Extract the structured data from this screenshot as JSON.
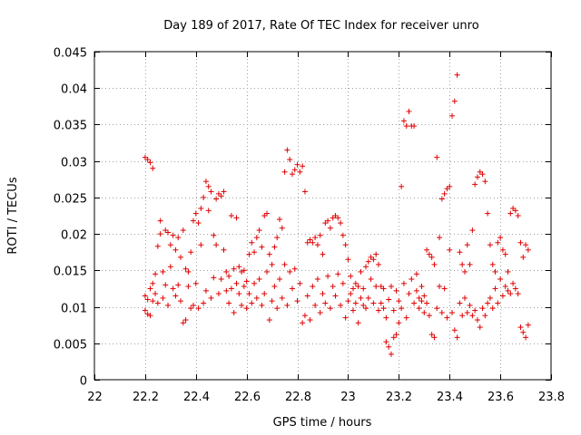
{
  "chart_data": {
    "type": "scatter",
    "title": "Day 189 of 2017, Rate Of TEC Index for receiver unro",
    "xlabel": "GPS time / hours",
    "ylabel": "ROTI / TECUs",
    "xlim": [
      22,
      23.8
    ],
    "ylim": [
      0,
      0.045
    ],
    "x_ticks": [
      22,
      22.2,
      22.4,
      22.6,
      22.8,
      23,
      23.2,
      23.4,
      23.6,
      23.8
    ],
    "x_tick_labels": [
      "22",
      "22.2",
      "22.4",
      "22.6",
      "22.8",
      "23",
      "23.2",
      "23.4",
      "23.6",
      "23.8"
    ],
    "y_ticks": [
      0,
      0.005,
      0.01,
      0.015,
      0.02,
      0.025,
      0.03,
      0.035,
      0.04,
      0.045
    ],
    "y_tick_labels": [
      "0",
      "0.005",
      "0.01",
      "0.015",
      "0.02",
      "0.025",
      "0.03",
      "0.035",
      "0.04",
      "0.045"
    ],
    "grid": true,
    "marker": "+",
    "color": "#e00000",
    "points": [
      [
        22.2,
        0.0305
      ],
      [
        22.21,
        0.0302
      ],
      [
        22.22,
        0.0298
      ],
      [
        22.23,
        0.029
      ],
      [
        22.2,
        0.0115
      ],
      [
        22.2,
        0.0095
      ],
      [
        22.21,
        0.009
      ],
      [
        22.21,
        0.011
      ],
      [
        22.22,
        0.0125
      ],
      [
        22.22,
        0.0088
      ],
      [
        22.23,
        0.0108
      ],
      [
        22.23,
        0.0132
      ],
      [
        22.24,
        0.0145
      ],
      [
        22.24,
        0.0118
      ],
      [
        22.25,
        0.0183
      ],
      [
        22.25,
        0.0105
      ],
      [
        22.26,
        0.0218
      ],
      [
        22.26,
        0.02
      ],
      [
        22.27,
        0.0148
      ],
      [
        22.27,
        0.0112
      ],
      [
        22.28,
        0.0205
      ],
      [
        22.28,
        0.013
      ],
      [
        22.29,
        0.0202
      ],
      [
        22.29,
        0.0102
      ],
      [
        22.3,
        0.0185
      ],
      [
        22.3,
        0.0155
      ],
      [
        22.31,
        0.0125
      ],
      [
        22.31,
        0.0198
      ],
      [
        22.32,
        0.0178
      ],
      [
        22.32,
        0.0115
      ],
      [
        22.33,
        0.0195
      ],
      [
        22.33,
        0.013
      ],
      [
        22.34,
        0.0168
      ],
      [
        22.34,
        0.0108
      ],
      [
        22.35,
        0.0205
      ],
      [
        22.35,
        0.0078
      ],
      [
        22.36,
        0.0152
      ],
      [
        22.36,
        0.0082
      ],
      [
        22.37,
        0.0128
      ],
      [
        22.37,
        0.0148
      ],
      [
        22.38,
        0.0175
      ],
      [
        22.38,
        0.0098
      ],
      [
        22.39,
        0.0218
      ],
      [
        22.39,
        0.0102
      ],
      [
        22.4,
        0.0228
      ],
      [
        22.4,
        0.0132
      ],
      [
        22.41,
        0.0215
      ],
      [
        22.41,
        0.0098
      ],
      [
        22.42,
        0.0235
      ],
      [
        22.42,
        0.0185
      ],
      [
        22.43,
        0.025
      ],
      [
        22.43,
        0.0105
      ],
      [
        22.44,
        0.0272
      ],
      [
        22.44,
        0.0122
      ],
      [
        22.45,
        0.0265
      ],
      [
        22.45,
        0.0232
      ],
      [
        22.46,
        0.0258
      ],
      [
        22.46,
        0.0112
      ],
      [
        22.47,
        0.0198
      ],
      [
        22.47,
        0.014
      ],
      [
        22.48,
        0.0248
      ],
      [
        22.48,
        0.0185
      ],
      [
        22.49,
        0.0255
      ],
      [
        22.49,
        0.0118
      ],
      [
        22.5,
        0.0252
      ],
      [
        22.5,
        0.0138
      ],
      [
        22.51,
        0.0258
      ],
      [
        22.51,
        0.0178
      ],
      [
        22.52,
        0.0122
      ],
      [
        22.52,
        0.0148
      ],
      [
        22.53,
        0.0142
      ],
      [
        22.53,
        0.0105
      ],
      [
        22.54,
        0.0225
      ],
      [
        22.54,
        0.0125
      ],
      [
        22.55,
        0.0152
      ],
      [
        22.55,
        0.0092
      ],
      [
        22.56,
        0.0222
      ],
      [
        22.56,
        0.0132
      ],
      [
        22.57,
        0.0155
      ],
      [
        22.57,
        0.0118
      ],
      [
        22.58,
        0.0148
      ],
      [
        22.58,
        0.0102
      ],
      [
        22.59,
        0.0128
      ],
      [
        22.59,
        0.015
      ],
      [
        22.6,
        0.0135
      ],
      [
        22.6,
        0.0098
      ],
      [
        22.61,
        0.0172
      ],
      [
        22.61,
        0.0118
      ],
      [
        22.62,
        0.0188
      ],
      [
        22.62,
        0.0105
      ],
      [
        22.63,
        0.0175
      ],
      [
        22.63,
        0.0132
      ],
      [
        22.64,
        0.0195
      ],
      [
        22.64,
        0.0112
      ],
      [
        22.65,
        0.0205
      ],
      [
        22.65,
        0.0138
      ],
      [
        22.66,
        0.0182
      ],
      [
        22.66,
        0.0102
      ],
      [
        22.67,
        0.0225
      ],
      [
        22.67,
        0.0118
      ],
      [
        22.68,
        0.0228
      ],
      [
        22.68,
        0.0148
      ],
      [
        22.69,
        0.0172
      ],
      [
        22.69,
        0.0082
      ],
      [
        22.7,
        0.0158
      ],
      [
        22.7,
        0.0108
      ],
      [
        22.71,
        0.0182
      ],
      [
        22.71,
        0.0128
      ],
      [
        22.72,
        0.0195
      ],
      [
        22.72,
        0.0098
      ],
      [
        22.73,
        0.022
      ],
      [
        22.73,
        0.0138
      ],
      [
        22.74,
        0.0208
      ],
      [
        22.74,
        0.0112
      ],
      [
        22.75,
        0.0285
      ],
      [
        22.75,
        0.0158
      ],
      [
        22.76,
        0.0315
      ],
      [
        22.76,
        0.0102
      ],
      [
        22.77,
        0.0302
      ],
      [
        22.77,
        0.0148
      ],
      [
        22.78,
        0.0282
      ],
      [
        22.78,
        0.0125
      ],
      [
        22.79,
        0.0288
      ],
      [
        22.79,
        0.0152
      ],
      [
        22.8,
        0.0295
      ],
      [
        22.8,
        0.0108
      ],
      [
        22.81,
        0.0285
      ],
      [
        22.81,
        0.0132
      ],
      [
        22.82,
        0.0293
      ],
      [
        22.82,
        0.0078
      ],
      [
        22.83,
        0.0258
      ],
      [
        22.83,
        0.0088
      ],
      [
        22.84,
        0.0188
      ],
      [
        22.84,
        0.0115
      ],
      [
        22.85,
        0.0192
      ],
      [
        22.85,
        0.0082
      ],
      [
        22.86,
        0.0188
      ],
      [
        22.86,
        0.0128
      ],
      [
        22.87,
        0.0195
      ],
      [
        22.87,
        0.0102
      ],
      [
        22.88,
        0.0185
      ],
      [
        22.88,
        0.0138
      ],
      [
        22.89,
        0.0198
      ],
      [
        22.89,
        0.0092
      ],
      [
        22.9,
        0.0172
      ],
      [
        22.9,
        0.0118
      ],
      [
        22.91,
        0.0215
      ],
      [
        22.91,
        0.0105
      ],
      [
        22.92,
        0.0218
      ],
      [
        22.92,
        0.0142
      ],
      [
        22.93,
        0.0208
      ],
      [
        22.93,
        0.0098
      ],
      [
        22.94,
        0.0222
      ],
      [
        22.94,
        0.0128
      ],
      [
        22.95,
        0.0225
      ],
      [
        22.95,
        0.0115
      ],
      [
        22.96,
        0.0222
      ],
      [
        22.96,
        0.0145
      ],
      [
        22.97,
        0.0215
      ],
      [
        22.97,
        0.0102
      ],
      [
        22.98,
        0.0198
      ],
      [
        22.98,
        0.0132
      ],
      [
        22.99,
        0.0185
      ],
      [
        22.99,
        0.0085
      ],
      [
        23.0,
        0.0165
      ],
      [
        23.0,
        0.0108
      ],
      [
        23.01,
        0.0118
      ],
      [
        23.01,
        0.0142
      ],
      [
        23.02,
        0.0125
      ],
      [
        23.02,
        0.0095
      ],
      [
        23.03,
        0.0132
      ],
      [
        23.03,
        0.0105
      ],
      [
        23.04,
        0.0078
      ],
      [
        23.04,
        0.0128
      ],
      [
        23.05,
        0.0112
      ],
      [
        23.05,
        0.0148
      ],
      [
        23.06,
        0.0102
      ],
      [
        23.06,
        0.0125
      ],
      [
        23.07,
        0.0155
      ],
      [
        23.07,
        0.0098
      ],
      [
        23.08,
        0.0162
      ],
      [
        23.08,
        0.0112
      ],
      [
        23.09,
        0.0168
      ],
      [
        23.09,
        0.0138
      ],
      [
        23.1,
        0.0165
      ],
      [
        23.1,
        0.0105
      ],
      [
        23.11,
        0.0172
      ],
      [
        23.11,
        0.0128
      ],
      [
        23.12,
        0.0158
      ],
      [
        23.12,
        0.0095
      ],
      [
        23.13,
        0.0128
      ],
      [
        23.13,
        0.0105
      ],
      [
        23.14,
        0.0098
      ],
      [
        23.14,
        0.0125
      ],
      [
        23.15,
        0.0052
      ],
      [
        23.15,
        0.0085
      ],
      [
        23.16,
        0.0045
      ],
      [
        23.16,
        0.011
      ],
      [
        23.17,
        0.0035
      ],
      [
        23.17,
        0.0128
      ],
      [
        23.18,
        0.0058
      ],
      [
        23.18,
        0.0095
      ],
      [
        23.19,
        0.0062
      ],
      [
        23.19,
        0.0122
      ],
      [
        23.2,
        0.0078
      ],
      [
        23.2,
        0.0108
      ],
      [
        23.21,
        0.0265
      ],
      [
        23.21,
        0.0098
      ],
      [
        23.22,
        0.0355
      ],
      [
        23.22,
        0.0132
      ],
      [
        23.23,
        0.0348
      ],
      [
        23.23,
        0.0085
      ],
      [
        23.24,
        0.0368
      ],
      [
        23.24,
        0.0118
      ],
      [
        23.25,
        0.0348
      ],
      [
        23.25,
        0.0138
      ],
      [
        23.26,
        0.0348
      ],
      [
        23.26,
        0.0105
      ],
      [
        23.27,
        0.0145
      ],
      [
        23.27,
        0.0122
      ],
      [
        23.28,
        0.0112
      ],
      [
        23.28,
        0.0098
      ],
      [
        23.29,
        0.0128
      ],
      [
        23.29,
        0.0108
      ],
      [
        23.3,
        0.0115
      ],
      [
        23.3,
        0.0092
      ],
      [
        23.31,
        0.0105
      ],
      [
        23.31,
        0.0178
      ],
      [
        23.32,
        0.0172
      ],
      [
        23.32,
        0.0088
      ],
      [
        23.33,
        0.0168
      ],
      [
        23.33,
        0.0062
      ],
      [
        23.34,
        0.0158
      ],
      [
        23.34,
        0.0058
      ],
      [
        23.35,
        0.0305
      ],
      [
        23.35,
        0.0098
      ],
      [
        23.36,
        0.0195
      ],
      [
        23.36,
        0.0128
      ],
      [
        23.37,
        0.0248
      ],
      [
        23.37,
        0.0092
      ],
      [
        23.38,
        0.0255
      ],
      [
        23.38,
        0.0125
      ],
      [
        23.39,
        0.0262
      ],
      [
        23.39,
        0.0085
      ],
      [
        23.4,
        0.0265
      ],
      [
        23.4,
        0.0178
      ],
      [
        23.41,
        0.0362
      ],
      [
        23.41,
        0.0092
      ],
      [
        23.42,
        0.0382
      ],
      [
        23.42,
        0.0068
      ],
      [
        23.43,
        0.0418
      ],
      [
        23.43,
        0.0058
      ],
      [
        23.44,
        0.0175
      ],
      [
        23.44,
        0.0105
      ],
      [
        23.45,
        0.0158
      ],
      [
        23.45,
        0.0088
      ],
      [
        23.46,
        0.0148
      ],
      [
        23.46,
        0.0112
      ],
      [
        23.47,
        0.0185
      ],
      [
        23.47,
        0.0092
      ],
      [
        23.48,
        0.0158
      ],
      [
        23.48,
        0.0102
      ],
      [
        23.49,
        0.0205
      ],
      [
        23.49,
        0.0088
      ],
      [
        23.5,
        0.0268
      ],
      [
        23.5,
        0.0095
      ],
      [
        23.51,
        0.0278
      ],
      [
        23.51,
        0.0082
      ],
      [
        23.52,
        0.0285
      ],
      [
        23.52,
        0.0072
      ],
      [
        23.53,
        0.0282
      ],
      [
        23.53,
        0.0098
      ],
      [
        23.54,
        0.0272
      ],
      [
        23.54,
        0.0088
      ],
      [
        23.55,
        0.0228
      ],
      [
        23.55,
        0.0105
      ],
      [
        23.56,
        0.0185
      ],
      [
        23.56,
        0.0112
      ],
      [
        23.57,
        0.0158
      ],
      [
        23.57,
        0.0098
      ],
      [
        23.58,
        0.0148
      ],
      [
        23.58,
        0.0125
      ],
      [
        23.59,
        0.0188
      ],
      [
        23.59,
        0.0105
      ],
      [
        23.6,
        0.0195
      ],
      [
        23.6,
        0.0138
      ],
      [
        23.61,
        0.0178
      ],
      [
        23.61,
        0.0115
      ],
      [
        23.62,
        0.0172
      ],
      [
        23.62,
        0.0128
      ],
      [
        23.63,
        0.0148
      ],
      [
        23.63,
        0.0122
      ],
      [
        23.64,
        0.0228
      ],
      [
        23.64,
        0.0118
      ],
      [
        23.65,
        0.0235
      ],
      [
        23.65,
        0.0132
      ],
      [
        23.66,
        0.0232
      ],
      [
        23.66,
        0.0125
      ],
      [
        23.67,
        0.0225
      ],
      [
        23.67,
        0.0118
      ],
      [
        23.68,
        0.0188
      ],
      [
        23.68,
        0.0072
      ],
      [
        23.69,
        0.0168
      ],
      [
        23.69,
        0.0065
      ],
      [
        23.7,
        0.0185
      ],
      [
        23.7,
        0.0058
      ],
      [
        23.71,
        0.0178
      ],
      [
        23.71,
        0.0075
      ]
    ]
  }
}
